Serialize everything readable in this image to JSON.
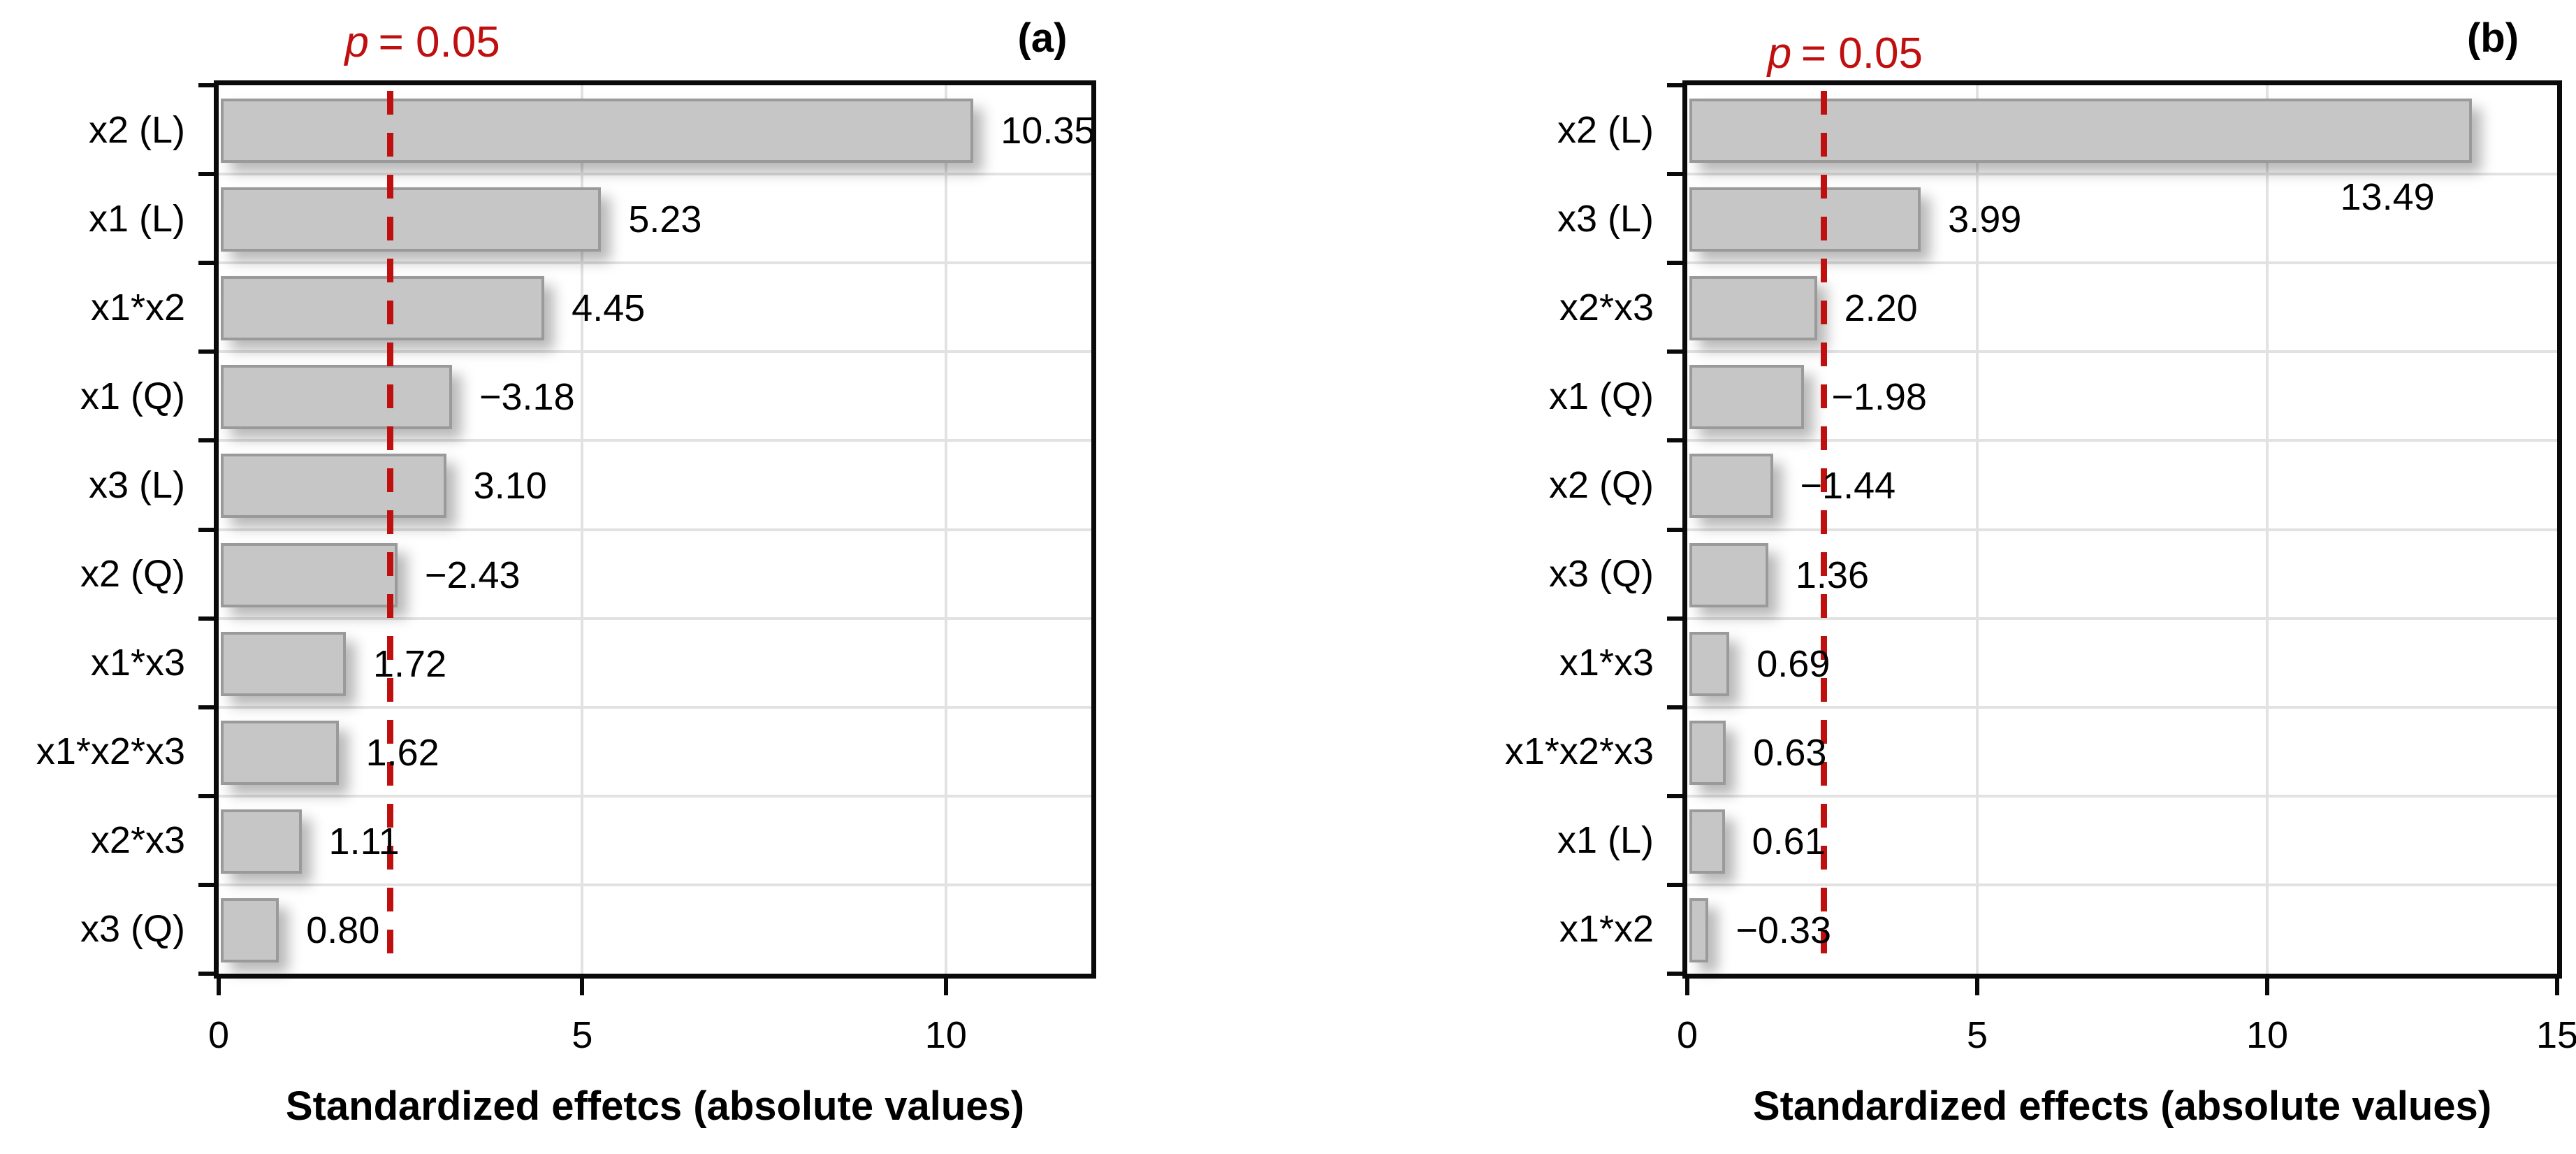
{
  "figure": {
    "background": "#ffffff",
    "description": "Two Pareto charts of standardized effects with p = 0.05 significance reference line"
  },
  "colors": {
    "bar_fill": "#c6c6c6",
    "bar_border": "#9a9a9a",
    "reference_line": "#bf0f0f",
    "grid": "#e2e2e2",
    "frame": "#0a0a0a",
    "text": "#000000"
  },
  "chart_data": [
    {
      "type": "bar",
      "orientation": "horizontal",
      "panel_label": "(a)",
      "xlabel": "Standardized effetcs (absolute values)",
      "xlim": [
        0,
        12
      ],
      "xticks": [
        0,
        5,
        10
      ],
      "grid": true,
      "reference_line": {
        "value": 2.36,
        "label_symbol": "p",
        "label_rest": "= 0.05",
        "color": "#bf0f0f"
      },
      "categories": [
        "x2 (L)",
        "x1 (L)",
        "x1*x2",
        "x1 (Q)",
        "x3 (L)",
        "x2 (Q)",
        "x1*x3",
        "x1*x2*x3",
        "x2*x3",
        "x3 (Q)"
      ],
      "values": [
        10.35,
        5.23,
        4.45,
        -3.18,
        3.1,
        -2.43,
        1.72,
        1.62,
        1.11,
        0.8
      ],
      "value_labels": [
        "10.35",
        "5.23",
        "4.45",
        "−3.18",
        "3.10",
        "−2.43",
        "1.72",
        "1.62",
        "1.11",
        "0.80"
      ],
      "label_below_indices": []
    },
    {
      "type": "bar",
      "orientation": "horizontal",
      "panel_label": "(b)",
      "xlabel": "Standardized effects (absolute values)",
      "xlim": [
        0,
        15
      ],
      "xticks": [
        0,
        5,
        10,
        15
      ],
      "grid": true,
      "reference_line": {
        "value": 2.36,
        "label_symbol": "p",
        "label_rest": "= 0.05",
        "color": "#bf0f0f"
      },
      "categories": [
        "x2 (L)",
        "x3 (L)",
        "x2*x3",
        "x1 (Q)",
        "x2 (Q)",
        "x3 (Q)",
        "x1*x3",
        "x1*x2*x3",
        "x1 (L)",
        "x1*x2"
      ],
      "values": [
        13.49,
        3.99,
        2.2,
        -1.98,
        -1.44,
        1.36,
        0.69,
        0.63,
        0.61,
        -0.33
      ],
      "value_labels": [
        "13.49",
        "3.99",
        "2.20",
        "−1.98",
        "−1.44",
        "1.36",
        "0.69",
        "0.63",
        "0.61",
        "−0.33"
      ],
      "label_below_indices": [
        0
      ]
    }
  ]
}
